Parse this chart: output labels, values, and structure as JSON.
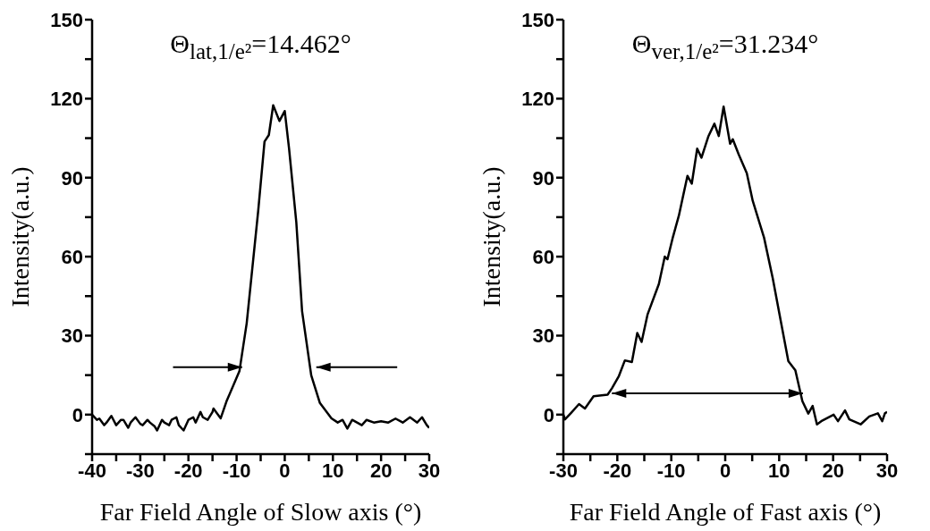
{
  "chart_data": [
    {
      "type": "line",
      "xlabel": "Far Field Angle of Slow axis (°)",
      "ylabel": "Intensity(a.u.)",
      "annotations": [
        "Θ$_{lat,1/e²}$=14.462°"
      ],
      "xlim": [
        -40,
        30
      ],
      "xticks": [
        -40,
        {
          "value": -35,
          "label": null
        },
        -30,
        {
          "value": -25,
          "label": null
        },
        -20,
        {
          "value": -15,
          "label": null
        },
        -10,
        {
          "value": -5,
          "label": null
        },
        0,
        {
          "value": 5,
          "label": null
        },
        10,
        {
          "value": 15,
          "label": null
        },
        20,
        {
          "value": 25,
          "label": null
        },
        30
      ],
      "ylim": [
        -15,
        150
      ],
      "yticks": [
        {
          "value": -15,
          "label": null
        },
        0,
        {
          "value": 15,
          "label": null
        },
        30,
        {
          "value": 45,
          "label": null
        },
        60,
        {
          "value": 75,
          "label": null
        },
        90,
        {
          "value": 105,
          "label": null
        },
        120,
        {
          "value": 135,
          "label": null
        },
        150
      ],
      "marker": "none",
      "line_style": "solid",
      "series": [
        {
          "color": "#000000",
          "x": [
            -40,
            -39,
            -38.5,
            -37.5,
            -37,
            -36,
            -35,
            -34,
            -33.5,
            -32.5,
            -32,
            -31,
            -30,
            -29.5,
            -28.5,
            -28,
            -27,
            -26.5,
            -25.5,
            -25,
            -24,
            -23.5,
            -22.5,
            -22,
            -21,
            -20,
            -19,
            -18.5,
            -17.5,
            -17,
            -16,
            -15,
            -14.8,
            -13.3,
            -12.1,
            -9.4,
            -7.9,
            -5.5,
            -4.2,
            -3.3,
            -2.4,
            -1.1,
            0,
            0.9,
            2.4,
            3.6,
            5.5,
            7.3,
            9.7,
            11,
            12,
            13,
            14,
            15,
            16,
            17,
            18.5,
            20,
            21.5,
            23,
            24.5,
            26,
            27.5,
            28.5,
            29.5,
            30
          ],
          "values": [
            0,
            -2,
            -1.5,
            -4,
            -3,
            -0.5,
            -4,
            -2,
            -2,
            -5,
            -3,
            -1,
            -3.5,
            -4,
            -2,
            -3,
            -4.5,
            -6,
            -2,
            -3,
            -4,
            -2,
            -1,
            -4,
            -6,
            -2,
            -1,
            -3,
            1,
            -1,
            -2,
            1,
            2.3,
            -1.4,
            5,
            16.6,
            34.7,
            77.6,
            103.7,
            106.2,
            117.5,
            111.5,
            115.3,
            101,
            73.1,
            39.3,
            14.9,
            4.4,
            -1.4,
            -3,
            -2,
            -5.3,
            -2,
            -3,
            -4,
            -2,
            -3,
            -2.5,
            -3,
            -1.5,
            -3,
            -1,
            -3,
            -1,
            -4,
            -5
          ]
        }
      ]
    },
    {
      "type": "line",
      "xlabel": "Far Field Angle of Fast axis (°)",
      "ylabel": "Intensity(a.u.)",
      "annotations": [
        "Θ$_{ver,1/e²}$=31.234°"
      ],
      "xlim": [
        -30,
        30
      ],
      "xticks": [
        -30,
        {
          "value": -25,
          "label": null
        },
        -20,
        {
          "value": -15,
          "label": null
        },
        -10,
        {
          "value": -5,
          "label": null
        },
        0,
        {
          "value": 5,
          "label": null
        },
        10,
        {
          "value": 15,
          "label": null
        },
        20,
        {
          "value": 25,
          "label": null
        },
        30
      ],
      "ylim": [
        -15,
        150
      ],
      "yticks": [
        {
          "value": -15,
          "label": null
        },
        0,
        {
          "value": 15,
          "label": null
        },
        30,
        {
          "value": 45,
          "label": null
        },
        60,
        {
          "value": 75,
          "label": null
        },
        90,
        {
          "value": 105,
          "label": null
        },
        120,
        {
          "value": 135,
          "label": null
        },
        150
      ],
      "marker": "none",
      "line_style": "solid",
      "series": [
        {
          "color": "#000000",
          "x": [
            -30,
            -29.7,
            -28.6,
            -27.1,
            -26,
            -24.4,
            -21.8,
            -21,
            -19.7,
            -18.6,
            -17.3,
            -16.3,
            -15.5,
            -14.4,
            -12.3,
            -11.2,
            -10.7,
            -9.7,
            -8.6,
            -7,
            -6.2,
            -5.2,
            -4.4,
            -3.1,
            -2,
            -1.2,
            -0.3,
            0.9,
            1.4,
            2.5,
            4,
            5.1,
            7.2,
            8.8,
            10.3,
            11.7,
            13,
            14.3,
            15.4,
            16.2,
            17,
            17.8,
            20.1,
            20.9,
            22.2,
            23,
            25.1,
            26.7,
            28.3,
            29.1,
            29.6,
            30
          ],
          "values": [
            0,
            -1.8,
            0.6,
            4,
            2.3,
            7,
            7.6,
            10,
            14.7,
            20.6,
            20,
            31,
            27.6,
            38,
            49.6,
            60,
            59,
            67.4,
            75.5,
            90.7,
            87.7,
            101,
            97.6,
            105.8,
            110.5,
            105.8,
            117,
            102.9,
            104.6,
            98.8,
            91.7,
            81.2,
            67.2,
            51.9,
            35.5,
            20.3,
            16.8,
            5.1,
            0.4,
            3.3,
            -3.7,
            -2.5,
            0,
            -2.5,
            1.6,
            -1.8,
            -3.7,
            -0.7,
            0.5,
            -2.5,
            0.5,
            1
          ]
        }
      ]
    }
  ]
}
